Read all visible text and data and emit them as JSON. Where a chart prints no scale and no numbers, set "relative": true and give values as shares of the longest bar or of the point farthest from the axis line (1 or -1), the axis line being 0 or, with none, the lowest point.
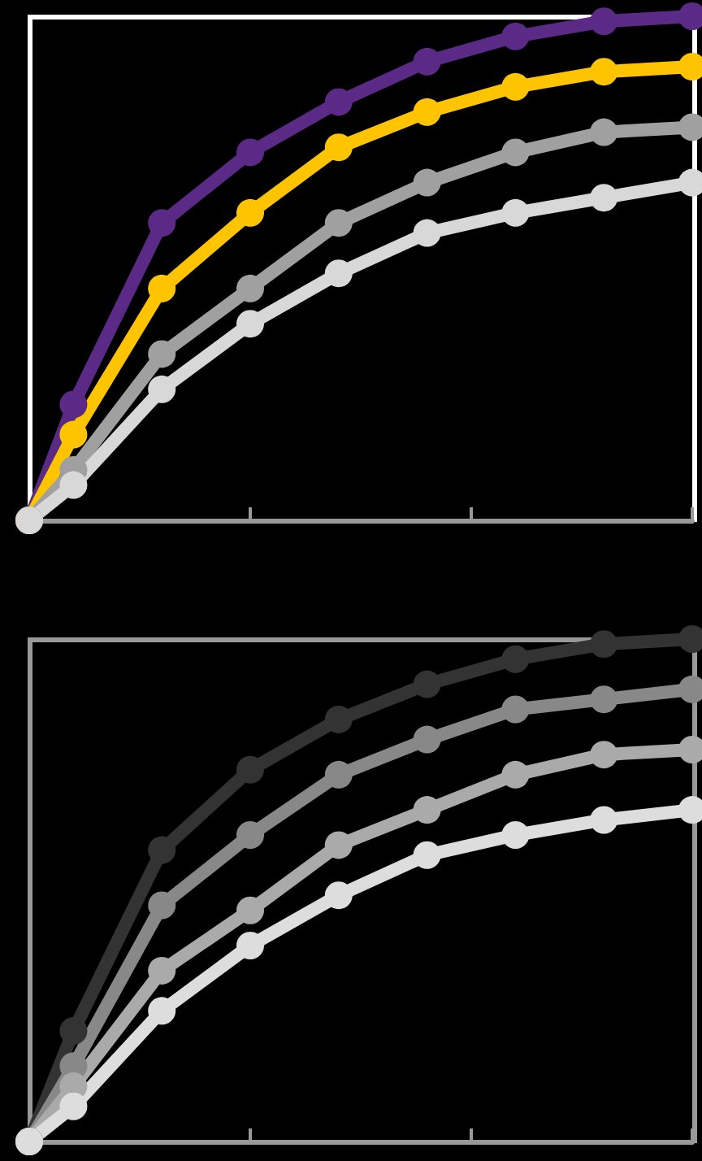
{
  "chart_data": [
    {
      "type": "line",
      "relative": true,
      "categories": [
        null,
        null,
        null,
        null,
        null,
        null,
        null,
        null,
        null,
        null,
        null,
        null,
        null,
        null,
        null,
        null
      ],
      "grid": false,
      "marker": "circle",
      "line_style": "solid",
      "series": [
        {
          "color": "#5b2a86",
          "values": [
            0,
            0.23,
            null,
            0.59,
            null,
            0.73,
            null,
            0.83,
            null,
            0.91,
            null,
            0.96,
            null,
            0.99,
            null,
            1.0
          ]
        },
        {
          "color": "#ffc400",
          "values": [
            0,
            0.17,
            null,
            0.46,
            null,
            0.61,
            null,
            0.74,
            null,
            0.81,
            null,
            0.86,
            null,
            0.89,
            null,
            0.9
          ]
        },
        {
          "color": "#a0a0a0",
          "values": [
            0,
            0.1,
            null,
            0.33,
            null,
            0.46,
            null,
            0.59,
            null,
            0.67,
            null,
            0.73,
            null,
            0.77,
            null,
            0.78
          ]
        },
        {
          "color": "#d8d8d8",
          "values": [
            0,
            0.07,
            null,
            0.26,
            null,
            0.39,
            null,
            0.49,
            null,
            0.57,
            null,
            0.61,
            null,
            0.64,
            null,
            0.67
          ]
        }
      ]
    },
    {
      "type": "line",
      "relative": true,
      "categories": [
        null,
        null,
        null,
        null,
        null,
        null,
        null,
        null,
        null,
        null,
        null,
        null,
        null,
        null,
        null,
        null
      ],
      "grid": false,
      "marker": "circle",
      "line_style": "solid",
      "series": [
        {
          "color": "#333333",
          "values": [
            0,
            0.22,
            null,
            0.58,
            null,
            0.74,
            null,
            0.84,
            null,
            0.91,
            null,
            0.96,
            null,
            0.99,
            null,
            1.0
          ]
        },
        {
          "color": "#888888",
          "values": [
            0,
            0.15,
            null,
            0.47,
            null,
            0.61,
            null,
            0.73,
            null,
            0.8,
            null,
            0.86,
            null,
            0.88,
            null,
            0.9
          ]
        },
        {
          "color": "#aaaaaa",
          "values": [
            0,
            0.11,
            null,
            0.34,
            null,
            0.46,
            null,
            0.59,
            null,
            0.66,
            null,
            0.73,
            null,
            0.77,
            null,
            0.78
          ]
        },
        {
          "color": "#dddddd",
          "values": [
            0,
            0.07,
            null,
            0.26,
            null,
            0.39,
            null,
            0.49,
            null,
            0.57,
            null,
            0.61,
            null,
            0.64,
            null,
            0.66
          ]
        }
      ]
    }
  ]
}
